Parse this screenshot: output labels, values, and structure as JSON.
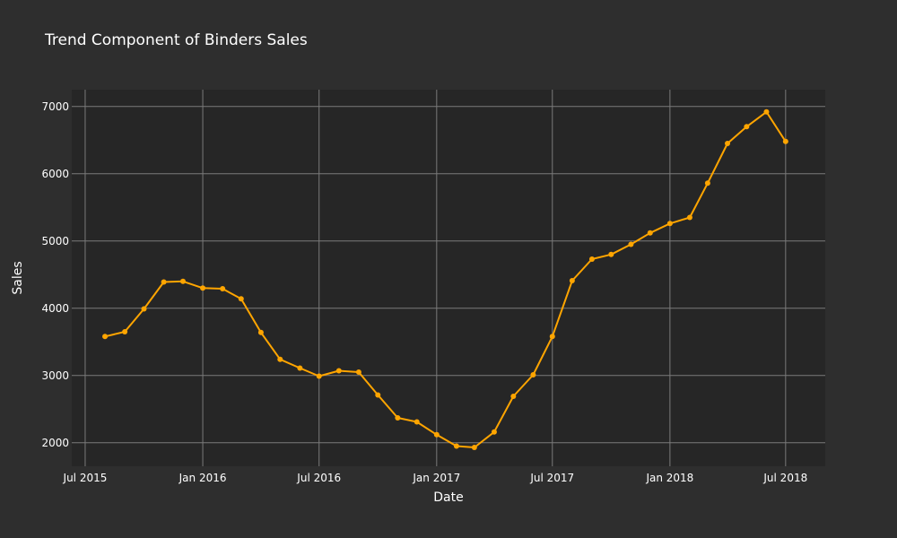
{
  "chart_data": {
    "type": "line",
    "title": "Trend Component of Binders Sales",
    "xlabel": "Date",
    "ylabel": "Sales",
    "x_tick_labels": [
      "Jul 2015",
      "Jan 2016",
      "Jul 2016",
      "Jan 2017",
      "Jul 2017",
      "Jan 2018",
      "Jul 2018"
    ],
    "x_tick_dates": [
      "2015-07-01",
      "2016-01-01",
      "2016-07-01",
      "2017-01-01",
      "2017-07-01",
      "2018-01-01",
      "2018-07-01"
    ],
    "y_ticks": [
      2000,
      3000,
      4000,
      5000,
      6000,
      7000
    ],
    "y_tick_labels": [
      "2000",
      "3000",
      "4000",
      "5000",
      "6000",
      "7000"
    ],
    "xlim": [
      "2015-06-10",
      "2018-09-01"
    ],
    "ylim": [
      1650,
      7250
    ],
    "grid": true,
    "colors": {
      "background": "#2e2e2e",
      "plot_background": "#262626",
      "grid": "#7a7a7a",
      "line": "#ffa500",
      "text": "#ffffff"
    },
    "series": [
      {
        "x": [
          "2015-08-01",
          "2015-09-01",
          "2015-10-01",
          "2015-11-01",
          "2015-12-01",
          "2016-01-01",
          "2016-02-01",
          "2016-03-01",
          "2016-04-01",
          "2016-05-01",
          "2016-06-01",
          "2016-07-01",
          "2016-08-01",
          "2016-09-01",
          "2016-10-01",
          "2016-11-01",
          "2016-12-01",
          "2017-01-01",
          "2017-02-01",
          "2017-03-01",
          "2017-04-01",
          "2017-05-01",
          "2017-06-01",
          "2017-07-01",
          "2017-08-01",
          "2017-09-01",
          "2017-10-01",
          "2017-11-01",
          "2017-12-01",
          "2018-01-01",
          "2018-02-01",
          "2018-03-01",
          "2018-04-01",
          "2018-05-01",
          "2018-06-01",
          "2018-07-01"
        ],
        "values": [
          3580,
          3650,
          3990,
          4390,
          4400,
          4300,
          4290,
          4140,
          3640,
          3240,
          3110,
          2990,
          3070,
          3050,
          2710,
          2370,
          2310,
          2120,
          1950,
          1930,
          2160,
          2690,
          3010,
          3580,
          4410,
          4730,
          4800,
          4950,
          5120,
          5260,
          5350,
          5860,
          6450,
          6700,
          6920,
          6480
        ]
      }
    ]
  }
}
